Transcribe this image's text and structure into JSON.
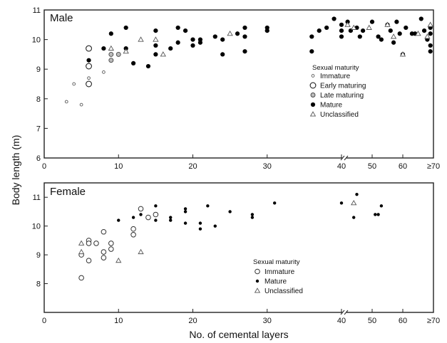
{
  "figure": {
    "ylabel": "Body length (m)",
    "xlabel": "No. of cemental layers"
  },
  "chart_data": [
    {
      "type": "scatter",
      "title": "Male",
      "ylim": [
        6,
        11
      ],
      "yticks": [
        "6",
        "7",
        "8",
        "9",
        "10",
        "11"
      ],
      "xlim": [
        0,
        70
      ],
      "x_axis_note": "broken axis after 40: 40, 50, 60, ≥70",
      "xticks": [
        "0",
        "10",
        "20",
        "30",
        "40",
        "50",
        "60",
        "≥70"
      ],
      "legend": {
        "title": "Sexual maturity",
        "position": "center-right",
        "entries": [
          {
            "label": "Immature",
            "marker": "small-open-circle"
          },
          {
            "label": "Early maturing",
            "marker": "large-open-circle"
          },
          {
            "label": "Late maturing",
            "marker": "grey-circle"
          },
          {
            "label": "Mature",
            "marker": "filled-circle"
          },
          {
            "label": "Unclassified",
            "marker": "open-triangle"
          }
        ]
      },
      "series": [
        {
          "name": "Immature",
          "points": [
            [
              3,
              7.9
            ],
            [
              4,
              8.5
            ],
            [
              5,
              7.8
            ],
            [
              6,
              8.7
            ],
            [
              8,
              8.9
            ]
          ]
        },
        {
          "name": "Early maturing",
          "points": [
            [
              6,
              8.5
            ],
            [
              6,
              9.1
            ],
            [
              6,
              9.7
            ]
          ]
        },
        {
          "name": "Late maturing",
          "points": [
            [
              9,
              9.3
            ],
            [
              9,
              9.5
            ],
            [
              10,
              9.5
            ]
          ]
        },
        {
          "name": "Mature",
          "points": [
            [
              6,
              9.3
            ],
            [
              8,
              9.7
            ],
            [
              9,
              10.2
            ],
            [
              11,
              10.4
            ],
            [
              11,
              9.7
            ],
            [
              12,
              9.2
            ],
            [
              14,
              9.1
            ],
            [
              15,
              10.3
            ],
            [
              15,
              9.8
            ],
            [
              15,
              9.5
            ],
            [
              17,
              9.7
            ],
            [
              18,
              10.4
            ],
            [
              18,
              9.9
            ],
            [
              19,
              10.3
            ],
            [
              20,
              10.0
            ],
            [
              20,
              9.8
            ],
            [
              21,
              9.9
            ],
            [
              21,
              10.0
            ],
            [
              23,
              10.1
            ],
            [
              24,
              10.0
            ],
            [
              24,
              9.5
            ],
            [
              26,
              10.2
            ],
            [
              27,
              10.4
            ],
            [
              27,
              10.1
            ],
            [
              27,
              9.6
            ],
            [
              30,
              10.3
            ],
            [
              30,
              10.4
            ],
            [
              36,
              10.1
            ],
            [
              36,
              9.6
            ],
            [
              37,
              10.3
            ],
            [
              38,
              10.4
            ],
            [
              39,
              10.7
            ],
            [
              40,
              10.5
            ],
            [
              40,
              10.3
            ],
            [
              40,
              10.1
            ],
            [
              42,
              10.6
            ],
            [
              43,
              10.3
            ],
            [
              45,
              10.4
            ],
            [
              46,
              10.1
            ],
            [
              47,
              10.3
            ],
            [
              50,
              10.6
            ],
            [
              52,
              10.1
            ],
            [
              53,
              10.0
            ],
            [
              55,
              10.5
            ],
            [
              56,
              10.3
            ],
            [
              57,
              9.9
            ],
            [
              58,
              10.6
            ],
            [
              59,
              10.2
            ],
            [
              60,
              9.5
            ],
            [
              61,
              10.4
            ],
            [
              63,
              10.2
            ],
            [
              64,
              10.2
            ],
            [
              66,
              10.7
            ],
            [
              67,
              10.3
            ],
            [
              68,
              10.0
            ],
            [
              69,
              10.4
            ],
            [
              69,
              10.2
            ],
            [
              69,
              9.8
            ],
            [
              69,
              9.6
            ]
          ]
        },
        {
          "name": "Unclassified",
          "points": [
            [
              9,
              9.7
            ],
            [
              11,
              9.6
            ],
            [
              13,
              10.0
            ],
            [
              15,
              10.0
            ],
            [
              16,
              9.5
            ],
            [
              25,
              10.2
            ],
            [
              42,
              10.5
            ],
            [
              44,
              10.4
            ],
            [
              49,
              10.4
            ],
            [
              55,
              10.5
            ],
            [
              57,
              10.1
            ],
            [
              60,
              9.5
            ],
            [
              65,
              10.2
            ],
            [
              68,
              10.1
            ],
            [
              69,
              10.5
            ]
          ]
        }
      ]
    },
    {
      "type": "scatter",
      "title": "Female",
      "ylim": [
        7,
        11.5
      ],
      "yticks": [
        "8",
        "9",
        "10",
        "11"
      ],
      "xlim": [
        0,
        70
      ],
      "x_axis_note": "broken axis after 40: 40, 50, 60, ≥70",
      "xticks": [
        "0",
        "10",
        "20",
        "30",
        "40",
        "50",
        "60",
        "≥70"
      ],
      "legend": {
        "title": "Sexual maturity",
        "position": "bottom-center",
        "entries": [
          {
            "label": "Immature",
            "marker": "open-circle"
          },
          {
            "label": "Mature",
            "marker": "small-filled-circle"
          },
          {
            "label": "Unclassified",
            "marker": "open-triangle"
          }
        ]
      },
      "series": [
        {
          "name": "Immature",
          "points": [
            [
              5,
              8.2
            ],
            [
              5,
              9.0
            ],
            [
              6,
              9.5
            ],
            [
              6,
              9.4
            ],
            [
              6,
              8.8
            ],
            [
              7,
              9.4
            ],
            [
              8,
              9.8
            ],
            [
              8,
              9.1
            ],
            [
              8,
              8.9
            ],
            [
              9,
              9.2
            ],
            [
              9,
              9.4
            ],
            [
              12,
              9.9
            ],
            [
              12,
              9.7
            ],
            [
              13,
              10.6
            ],
            [
              14,
              10.3
            ],
            [
              15,
              10.4
            ]
          ]
        },
        {
          "name": "Mature",
          "points": [
            [
              10,
              10.2
            ],
            [
              12,
              10.3
            ],
            [
              13,
              10.4
            ],
            [
              15,
              10.2
            ],
            [
              15,
              10.7
            ],
            [
              17,
              10.2
            ],
            [
              17,
              10.3
            ],
            [
              19,
              10.6
            ],
            [
              19,
              10.5
            ],
            [
              19,
              10.1
            ],
            [
              21,
              9.9
            ],
            [
              21,
              10.1
            ],
            [
              22,
              10.7
            ],
            [
              23,
              10.0
            ],
            [
              25,
              10.5
            ],
            [
              28,
              10.3
            ],
            [
              28,
              10.4
            ],
            [
              31,
              10.8
            ],
            [
              40,
              10.8
            ],
            [
              44,
              10.3
            ],
            [
              45,
              11.1
            ],
            [
              51,
              10.4
            ],
            [
              52,
              10.4
            ],
            [
              53,
              10.7
            ]
          ]
        },
        {
          "name": "Unclassified",
          "points": [
            [
              5,
              9.4
            ],
            [
              5,
              9.1
            ],
            [
              10,
              8.8
            ],
            [
              13,
              9.1
            ],
            [
              44,
              10.8
            ]
          ]
        }
      ]
    }
  ]
}
